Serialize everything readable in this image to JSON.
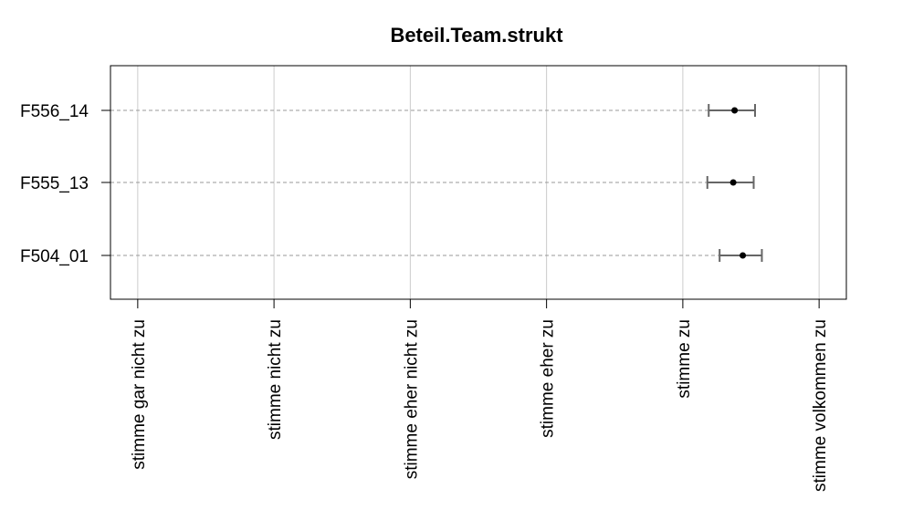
{
  "chart_data": {
    "type": "scatter",
    "title": "Beteil.Team.strukt",
    "xlabel": "",
    "ylabel": "",
    "x_ticks": [
      "stimme gar nicht zu",
      "stimme nicht zu",
      "stimme eher nicht zu",
      "stimme eher zu",
      "stimme zu",
      "stimme volkommen zu"
    ],
    "xlim": [
      0.8,
      6.2
    ],
    "y_categories": [
      "F556_14",
      "F555_13",
      "F504_01"
    ],
    "points": [
      {
        "label": "F556_14",
        "mean": 5.38,
        "lower": 5.19,
        "upper": 5.53
      },
      {
        "label": "F555_13",
        "mean": 5.37,
        "lower": 5.18,
        "upper": 5.52
      },
      {
        "label": "F504_01",
        "mean": 5.44,
        "lower": 5.27,
        "upper": 5.58
      }
    ],
    "grid": true,
    "colors": {
      "point": "#000000",
      "errorbar": "#666666",
      "guide_line": "#999999",
      "grid": "#cccccc",
      "frame": "#000000"
    }
  }
}
